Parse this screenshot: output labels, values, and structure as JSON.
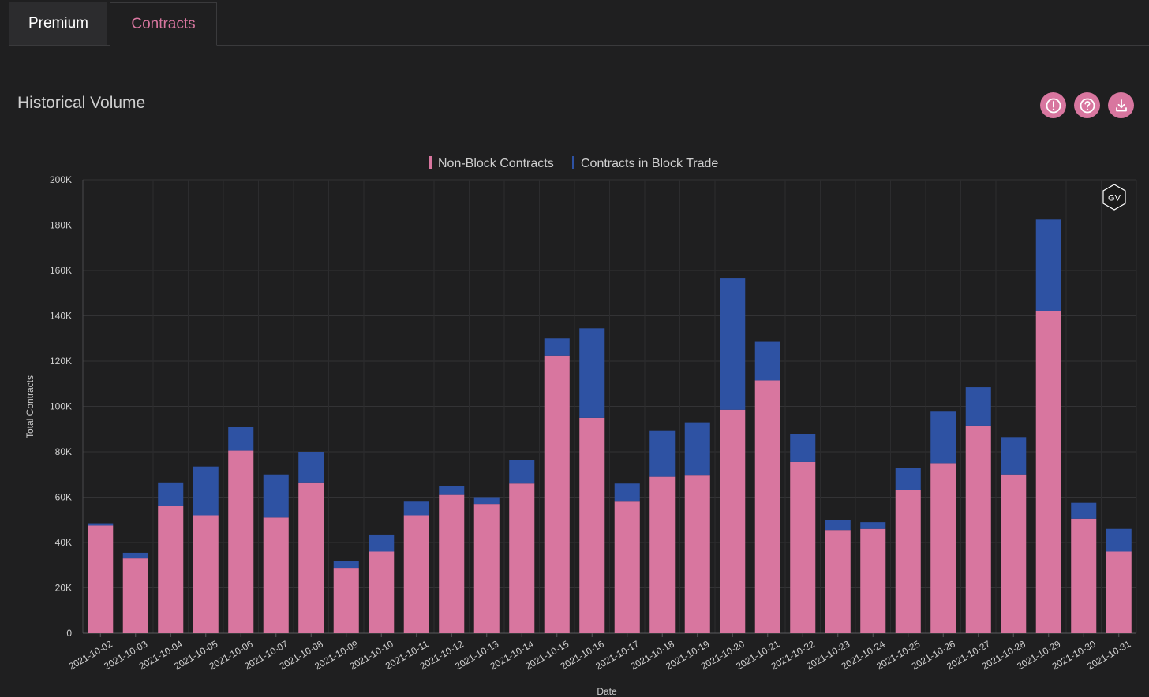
{
  "tabs": [
    {
      "label": "Premium",
      "active": false
    },
    {
      "label": "Contracts",
      "active": true
    }
  ],
  "section": {
    "title": "Historical Volume"
  },
  "icons": [
    "info-icon",
    "help-icon",
    "download-icon"
  ],
  "watermark": "GV",
  "colors": {
    "accent": "#d8769f",
    "non_block": "#d8769f",
    "block": "#2e52a3",
    "background": "#1f1f20"
  },
  "chart_data": {
    "type": "bar",
    "stacked": true,
    "xlabel": "Date",
    "ylabel": "Total Contracts",
    "ylim": [
      0,
      200000
    ],
    "yticks": [
      0,
      20000,
      40000,
      60000,
      80000,
      100000,
      120000,
      140000,
      160000,
      180000,
      200000
    ],
    "ytick_labels": [
      "0",
      "20K",
      "40K",
      "60K",
      "80K",
      "100K",
      "120K",
      "140K",
      "160K",
      "180K",
      "200K"
    ],
    "legend_position": "top-center",
    "grid": true,
    "categories": [
      "2021-10-02",
      "2021-10-03",
      "2021-10-04",
      "2021-10-05",
      "2021-10-06",
      "2021-10-07",
      "2021-10-08",
      "2021-10-09",
      "2021-10-10",
      "2021-10-11",
      "2021-10-12",
      "2021-10-13",
      "2021-10-14",
      "2021-10-15",
      "2021-10-16",
      "2021-10-17",
      "2021-10-18",
      "2021-10-19",
      "2021-10-20",
      "2021-10-21",
      "2021-10-22",
      "2021-10-23",
      "2021-10-24",
      "2021-10-25",
      "2021-10-26",
      "2021-10-27",
      "2021-10-28",
      "2021-10-29",
      "2021-10-30",
      "2021-10-31"
    ],
    "series": [
      {
        "name": "Non-Block Contracts",
        "color": "#d8769f",
        "values": [
          47500,
          33000,
          56000,
          52000,
          80500,
          51000,
          66500,
          28500,
          36000,
          52000,
          61000,
          57000,
          66000,
          122500,
          95000,
          58000,
          69000,
          69500,
          98500,
          111500,
          75500,
          45500,
          46000,
          63000,
          75000,
          91500,
          70000,
          142000,
          50500,
          36000
        ]
      },
      {
        "name": "Contracts in Block Trade",
        "color": "#2e52a3",
        "values": [
          1000,
          2500,
          10500,
          21500,
          10500,
          19000,
          13500,
          3500,
          7500,
          6000,
          4000,
          3000,
          10500,
          7500,
          39500,
          8000,
          20500,
          23500,
          58000,
          17000,
          12500,
          4500,
          3000,
          10000,
          23000,
          17000,
          16500,
          40500,
          7000,
          10000
        ]
      }
    ]
  }
}
